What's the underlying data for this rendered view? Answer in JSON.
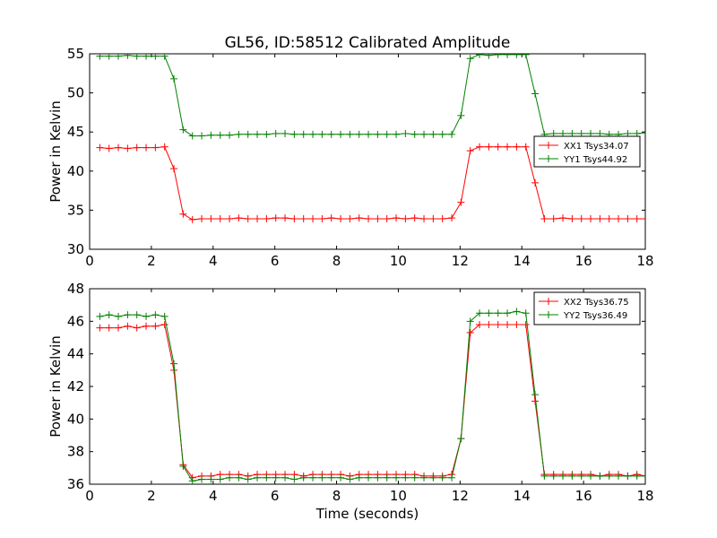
{
  "title": "GL56, ID:58512 Calibrated Amplitude",
  "colors": {
    "XX": "#ff0000",
    "YY": "#008000",
    "axes": "#000000",
    "background": "#ffffff"
  },
  "chart_data": [
    {
      "type": "line",
      "ylabel": "Power in Kelvin",
      "xlabel": "",
      "xlim": [
        0,
        18
      ],
      "ylim": [
        30,
        55
      ],
      "xticks": [
        "0",
        "2",
        "4",
        "6",
        "8",
        "10",
        "12",
        "14",
        "16",
        "18"
      ],
      "yticks": [
        "30",
        "35",
        "40",
        "45",
        "50",
        "55"
      ],
      "grid": false,
      "legend": {
        "placement": "center-right"
      },
      "x": [
        0.33,
        0.63,
        0.93,
        1.23,
        1.53,
        1.83,
        2.13,
        2.43,
        2.73,
        3.03,
        3.33,
        3.63,
        3.93,
        4.23,
        4.53,
        4.83,
        5.13,
        5.43,
        5.73,
        6.03,
        6.33,
        6.63,
        6.93,
        7.23,
        7.53,
        7.83,
        8.13,
        8.43,
        8.73,
        9.03,
        9.33,
        9.63,
        9.93,
        10.23,
        10.53,
        10.83,
        11.13,
        11.43,
        11.73,
        12.03,
        12.33,
        12.63,
        12.93,
        13.23,
        13.53,
        13.83,
        14.13,
        14.43,
        14.73,
        15.03,
        15.33,
        15.63,
        15.93,
        16.23,
        16.53,
        16.83,
        17.13,
        17.43,
        17.73,
        18.03
      ],
      "series": [
        {
          "name": "XX1 Tsys34.07",
          "color": "#ff0000",
          "values": [
            43.0,
            42.9,
            43.0,
            42.9,
            43.0,
            43.0,
            43.0,
            43.1,
            40.3,
            34.5,
            33.8,
            33.9,
            33.9,
            33.9,
            33.9,
            34.0,
            33.9,
            33.9,
            33.9,
            34.0,
            34.0,
            33.9,
            33.9,
            33.9,
            33.9,
            34.0,
            33.9,
            33.9,
            34.0,
            33.9,
            33.9,
            33.9,
            34.0,
            33.9,
            34.0,
            33.9,
            33.9,
            33.9,
            34.0,
            36.0,
            42.6,
            43.1,
            43.1,
            43.1,
            43.1,
            43.1,
            43.1,
            38.5,
            33.9,
            33.9,
            34.0,
            33.9,
            33.9,
            33.9,
            33.9,
            33.9,
            33.9,
            33.9,
            33.9,
            33.9
          ]
        },
        {
          "name": "YY1 Tsys44.92",
          "color": "#008000",
          "values": [
            54.7,
            54.7,
            54.7,
            54.8,
            54.7,
            54.7,
            54.7,
            54.7,
            51.8,
            45.3,
            44.5,
            44.5,
            44.6,
            44.6,
            44.6,
            44.7,
            44.7,
            44.7,
            44.7,
            44.8,
            44.8,
            44.7,
            44.7,
            44.7,
            44.7,
            44.7,
            44.7,
            44.7,
            44.7,
            44.7,
            44.7,
            44.7,
            44.7,
            44.8,
            44.7,
            44.7,
            44.7,
            44.7,
            44.7,
            47.1,
            54.4,
            54.9,
            54.8,
            54.9,
            54.9,
            54.9,
            54.9,
            49.9,
            44.7,
            44.8,
            44.8,
            44.8,
            44.8,
            44.8,
            44.8,
            44.7,
            44.7,
            44.8,
            44.8,
            44.9
          ]
        }
      ]
    },
    {
      "type": "line",
      "ylabel": "Power in Kelvin",
      "xlabel": "Time (seconds)",
      "xlim": [
        0,
        18
      ],
      "ylim": [
        36,
        48
      ],
      "xticks": [
        "0",
        "2",
        "4",
        "6",
        "8",
        "10",
        "12",
        "14",
        "16",
        "18"
      ],
      "yticks": [
        "36",
        "38",
        "40",
        "42",
        "44",
        "46",
        "48"
      ],
      "grid": false,
      "legend": {
        "placement": "top-right"
      },
      "x": [
        0.33,
        0.63,
        0.93,
        1.23,
        1.53,
        1.83,
        2.13,
        2.43,
        2.73,
        3.03,
        3.33,
        3.63,
        3.93,
        4.23,
        4.53,
        4.83,
        5.13,
        5.43,
        5.73,
        6.03,
        6.33,
        6.63,
        6.93,
        7.23,
        7.53,
        7.83,
        8.13,
        8.43,
        8.73,
        9.03,
        9.33,
        9.63,
        9.93,
        10.23,
        10.53,
        10.83,
        11.13,
        11.43,
        11.73,
        12.03,
        12.33,
        12.63,
        12.93,
        13.23,
        13.53,
        13.83,
        14.13,
        14.43,
        14.73,
        15.03,
        15.33,
        15.63,
        15.93,
        16.23,
        16.53,
        16.83,
        17.13,
        17.43,
        17.73,
        18.03
      ],
      "series": [
        {
          "name": "XX2 Tsys36.75",
          "color": "#ff0000",
          "values": [
            45.6,
            45.6,
            45.6,
            45.7,
            45.6,
            45.7,
            45.7,
            45.8,
            43.0,
            37.2,
            36.4,
            36.5,
            36.5,
            36.6,
            36.6,
            36.6,
            36.5,
            36.6,
            36.6,
            36.6,
            36.6,
            36.6,
            36.5,
            36.6,
            36.6,
            36.6,
            36.6,
            36.5,
            36.6,
            36.6,
            36.6,
            36.6,
            36.6,
            36.6,
            36.6,
            36.5,
            36.5,
            36.5,
            36.6,
            38.8,
            45.3,
            45.8,
            45.8,
            45.8,
            45.8,
            45.8,
            45.8,
            41.1,
            36.6,
            36.6,
            36.6,
            36.6,
            36.6,
            36.6,
            36.5,
            36.6,
            36.6,
            36.5,
            36.6,
            36.5
          ]
        },
        {
          "name": "YY2 Tsys36.49",
          "color": "#008000",
          "values": [
            46.3,
            46.4,
            46.3,
            46.4,
            46.4,
            46.3,
            46.4,
            46.3,
            43.4,
            37.1,
            36.2,
            36.3,
            36.3,
            36.3,
            36.4,
            36.4,
            36.3,
            36.4,
            36.4,
            36.4,
            36.4,
            36.3,
            36.4,
            36.4,
            36.4,
            36.4,
            36.4,
            36.3,
            36.4,
            36.4,
            36.4,
            36.4,
            36.4,
            36.4,
            36.4,
            36.4,
            36.4,
            36.4,
            36.4,
            38.8,
            46.0,
            46.5,
            46.5,
            46.5,
            46.5,
            46.6,
            46.5,
            41.5,
            36.5,
            36.5,
            36.5,
            36.5,
            36.5,
            36.5,
            36.5,
            36.5,
            36.5,
            36.5,
            36.5,
            36.5
          ]
        }
      ]
    }
  ]
}
